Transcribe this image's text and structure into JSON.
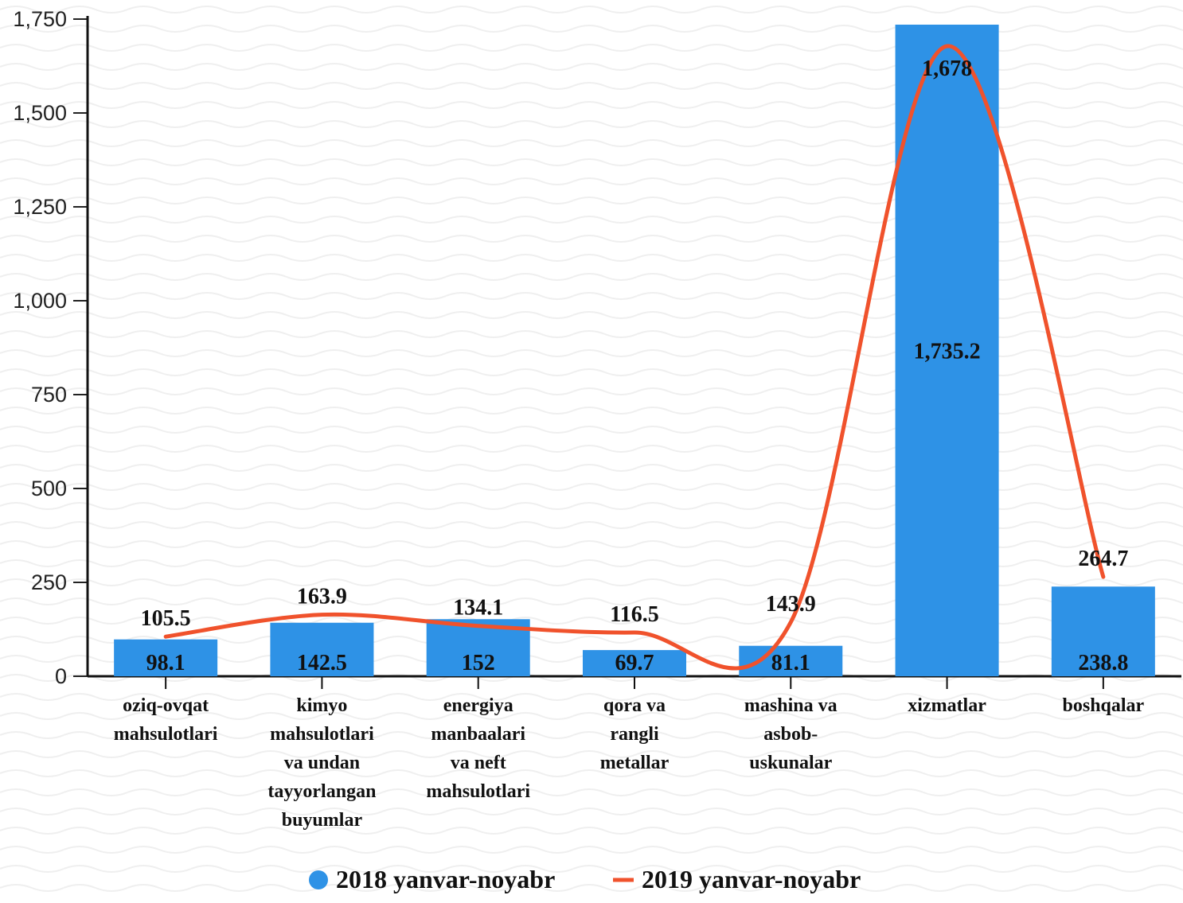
{
  "chart_data": {
    "type": "bar",
    "categories": [
      [
        "oziq-ovqat",
        "mahsulotlari"
      ],
      [
        "kimyo",
        "mahsulotlari",
        "va undan",
        "tayyorlangan",
        "buyumlar"
      ],
      [
        "energiya",
        "manbaalari",
        "va neft",
        "mahsulotlari"
      ],
      [
        "qora va",
        "rangli",
        "metallar"
      ],
      [
        "mashina va",
        "asbob-",
        "uskunalar"
      ],
      [
        "xizmatlar"
      ],
      [
        "boshqalar"
      ]
    ],
    "series": [
      {
        "name": "2018 yanvar-noyabr",
        "type": "bar",
        "color": "#2e92e6",
        "values": [
          98.1,
          142.5,
          152,
          69.7,
          81.1,
          1735.2,
          238.8
        ],
        "labels": [
          "98.1",
          "142.5",
          "152",
          "69.7",
          "81.1",
          "1,735.2",
          "238.8"
        ]
      },
      {
        "name": "2019 yanvar-noyabr",
        "type": "line",
        "color": "#f0522c",
        "values": [
          105.5,
          163.9,
          134.1,
          116.5,
          143.9,
          1678,
          264.7
        ],
        "labels": [
          "105.5",
          "163.9",
          "134.1",
          "116.5",
          "143.9",
          "1,678",
          "264.7"
        ]
      }
    ],
    "ylim": [
      0,
      1750
    ],
    "yticks": [
      {
        "value": 0,
        "label": "0"
      },
      {
        "value": 250,
        "label": "250"
      },
      {
        "value": 500,
        "label": "500"
      },
      {
        "value": 750,
        "label": "750"
      },
      {
        "value": 1000,
        "label": "1,000"
      },
      {
        "value": 1250,
        "label": "1,250"
      },
      {
        "value": 1500,
        "label": "1,500"
      },
      {
        "value": 1750,
        "label": "1,750"
      }
    ],
    "grid": false,
    "legend_position": "bottom",
    "smooth_line": true
  }
}
